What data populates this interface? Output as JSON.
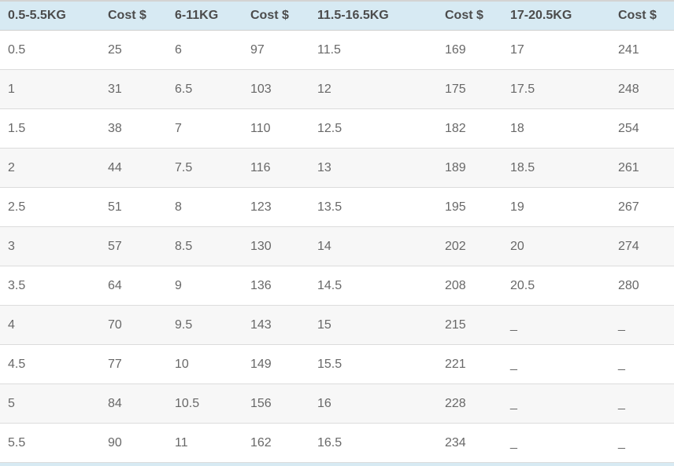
{
  "colors": {
    "header_bg": "#d7eaf3",
    "header_text": "#4c4c4c",
    "cell_text": "#686868",
    "row_bg": "#ffffff",
    "row_alt_bg": "#f7f7f7",
    "row_border": "#dcdcdc",
    "top_border": "#d3d3d3"
  },
  "chart_data": {
    "type": "table",
    "columns": [
      "0.5-5.5KG",
      "Cost $",
      "6-11KG",
      "Cost $",
      "11.5-16.5KG",
      "Cost $",
      "17-20.5KG",
      "Cost $"
    ],
    "rows": [
      [
        "0.5",
        "25",
        "6",
        "97",
        "11.5",
        "169",
        "17",
        "241"
      ],
      [
        "1",
        "31",
        "6.5",
        "103",
        "12",
        "175",
        "17.5",
        "248"
      ],
      [
        "1.5",
        "38",
        "7",
        "110",
        "12.5",
        "182",
        "18",
        "254"
      ],
      [
        "2",
        "44",
        "7.5",
        "116",
        "13",
        "189",
        "18.5",
        "261"
      ],
      [
        "2.5",
        "51",
        "8",
        "123",
        "13.5",
        "195",
        "19",
        "267"
      ],
      [
        "3",
        "57",
        "8.5",
        "130",
        "14",
        "202",
        "20",
        "274"
      ],
      [
        "3.5",
        "64",
        "9",
        "136",
        "14.5",
        "208",
        "20.5",
        "280"
      ],
      [
        "4",
        "70",
        "9.5",
        "143",
        "15",
        "215",
        "_",
        "_"
      ],
      [
        "4.5",
        "77",
        "10",
        "149",
        "15.5",
        "221",
        "_",
        "_"
      ],
      [
        "5",
        "84",
        "10.5",
        "156",
        "16",
        "228",
        "_",
        "_"
      ],
      [
        "5.5",
        "90",
        "11",
        "162",
        "16.5",
        "234",
        "_",
        "_"
      ]
    ],
    "layout": {
      "grid": "horizontal-row-borders",
      "header_position": "top",
      "zebra_striping": true,
      "bottom_cutoff_header_strip": true
    }
  }
}
